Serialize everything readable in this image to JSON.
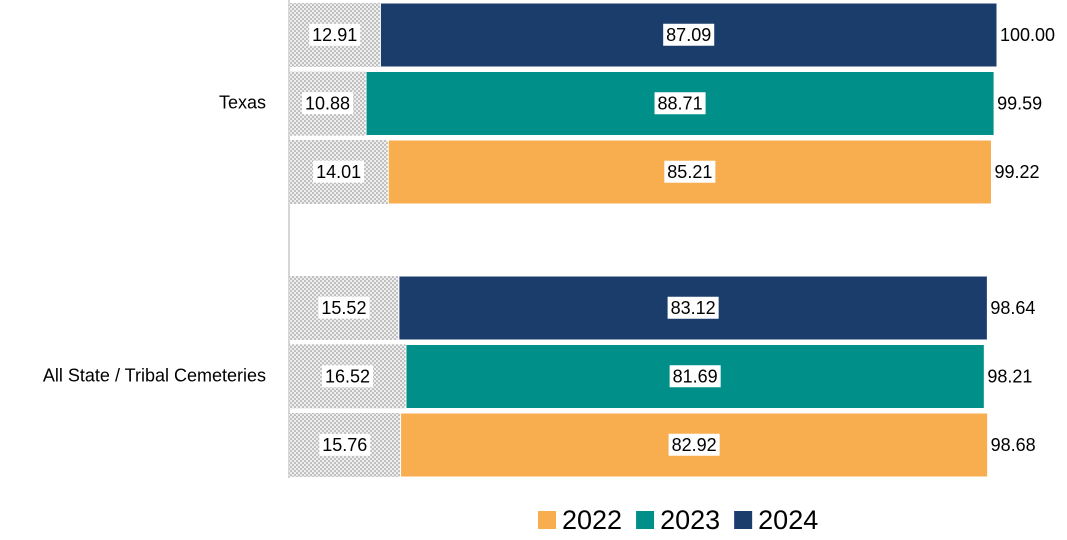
{
  "chart_data": {
    "type": "bar",
    "categories": [
      "Texas",
      "All State / Tribal Cemeteries"
    ],
    "xlim": [
      0,
      100
    ],
    "series": [
      {
        "name": "2022",
        "color": "#f8ad4f",
        "base": [
          14.01,
          15.76
        ],
        "values": [
          85.21,
          82.92
        ],
        "totals": [
          99.22,
          98.68
        ]
      },
      {
        "name": "2023",
        "color": "#009089",
        "base": [
          10.88,
          16.52
        ],
        "values": [
          88.71,
          81.69
        ],
        "totals": [
          99.59,
          98.21
        ]
      },
      {
        "name": "2024",
        "color": "#1b3d6b",
        "base": [
          12.91,
          15.52
        ],
        "values": [
          87.09,
          83.12
        ],
        "totals": [
          {
            "value": 100,
            "label": "100.00"
          },
          98.64
        ]
      }
    ]
  }
}
